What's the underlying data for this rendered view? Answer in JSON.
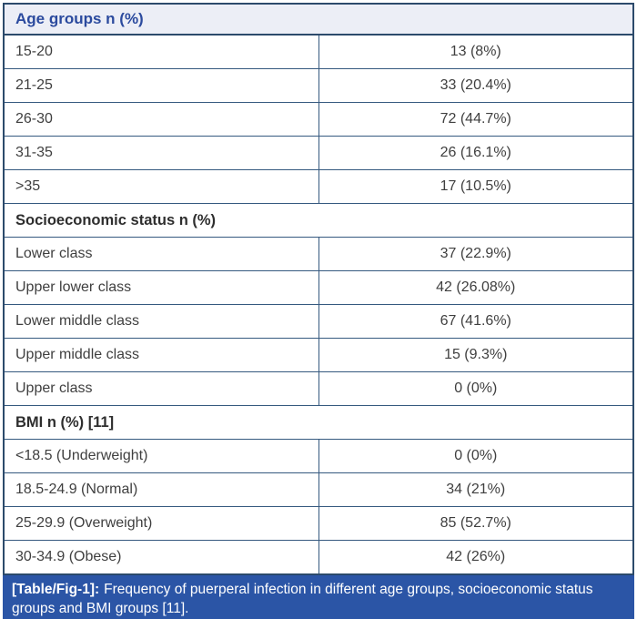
{
  "colors": {
    "outer_border": "#2c4a6b",
    "grid_line": "#35597f",
    "primary_header_bg": "#eceef6",
    "primary_header_text": "#2b4a9e",
    "section_header_text": "#2e2e2e",
    "body_text": "#3f3f3f",
    "caption_bg": "#2b55a6",
    "caption_text": "#ffffff"
  },
  "table": {
    "sections": [
      {
        "header": "Age groups n (%)",
        "rows": [
          {
            "label": "15-20",
            "value": "13 (8%)"
          },
          {
            "label": "21-25",
            "value": "33 (20.4%)"
          },
          {
            "label": "26-30",
            "value": "72 (44.7%)"
          },
          {
            "label": "31-35",
            "value": "26 (16.1%)"
          },
          {
            "label": ">35",
            "value": "17 (10.5%)"
          }
        ]
      },
      {
        "header": "Socioeconomic status n (%)",
        "rows": [
          {
            "label": "Lower class",
            "value": "37 (22.9%)"
          },
          {
            "label": "Upper lower class",
            "value": "42 (26.08%)"
          },
          {
            "label": "Lower middle class",
            "value": "67 (41.6%)"
          },
          {
            "label": "Upper middle class",
            "value": "15 (9.3%)"
          },
          {
            "label": "Upper class",
            "value": "0 (0%)"
          }
        ]
      },
      {
        "header": "BMI n (%) [11]",
        "rows": [
          {
            "label": "<18.5 (Underweight)",
            "value": "0 (0%)"
          },
          {
            "label": "18.5-24.9 (Normal)",
            "value": "34 (21%)"
          },
          {
            "label": "25-29.9 (Overweight)",
            "value": "85 (52.7%)"
          },
          {
            "label": "30-34.9 (Obese)",
            "value": "42 (26%)"
          }
        ]
      }
    ],
    "caption": {
      "label": "[Table/Fig-1]:",
      "text": "Frequency of puerperal infection in different age groups, socioeconomic status groups and BMI groups [11]."
    }
  }
}
